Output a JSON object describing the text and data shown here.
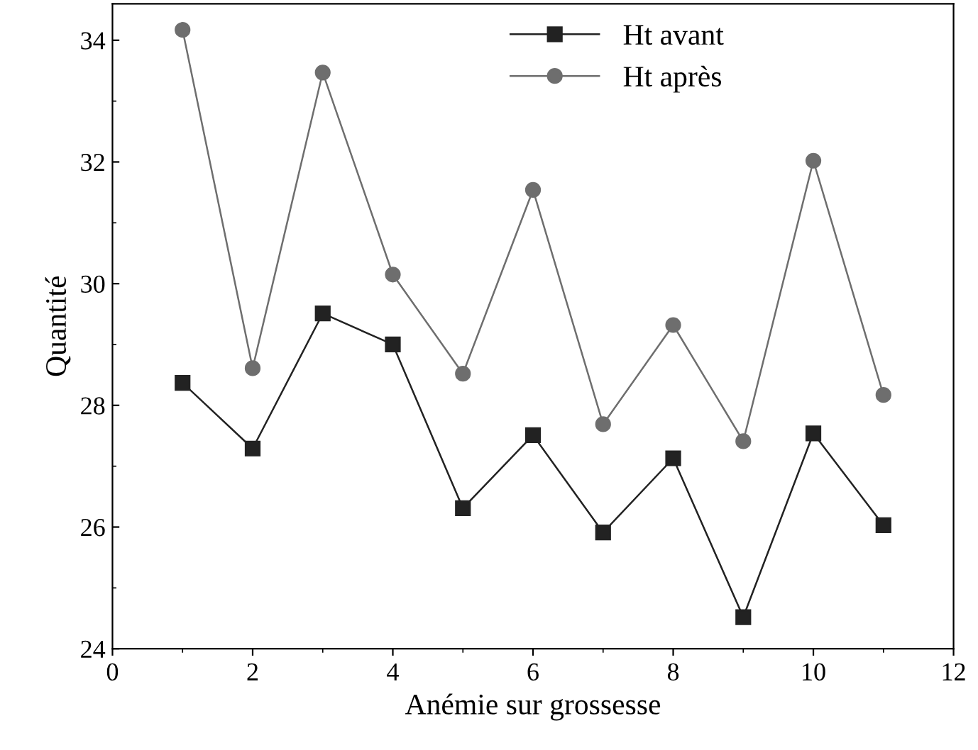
{
  "chart_data": {
    "type": "line",
    "xlabel": "Anémie sur grossesse",
    "ylabel": "Quantité",
    "x": [
      1,
      2,
      3,
      4,
      5,
      6,
      7,
      8,
      9,
      10,
      11
    ],
    "series": [
      {
        "name": "Ht avant",
        "color": "#222222",
        "marker": "square",
        "values": [
          28.37,
          27.29,
          29.51,
          29.0,
          26.31,
          27.51,
          25.91,
          27.13,
          24.52,
          27.54,
          26.03
        ]
      },
      {
        "name": "Ht après",
        "color": "#6e6e6e",
        "marker": "circle",
        "values": [
          34.17,
          28.61,
          33.47,
          30.15,
          28.52,
          31.54,
          27.69,
          29.32,
          27.41,
          32.02,
          28.17
        ]
      }
    ],
    "xlim": [
      0,
      12
    ],
    "xticks": [
      0,
      2,
      4,
      6,
      8,
      10,
      12
    ],
    "ylim": [
      24,
      34.6
    ],
    "yticks": [
      24,
      26,
      28,
      30,
      32,
      34
    ],
    "grid": false,
    "legend": "top",
    "line_style": "solid"
  }
}
